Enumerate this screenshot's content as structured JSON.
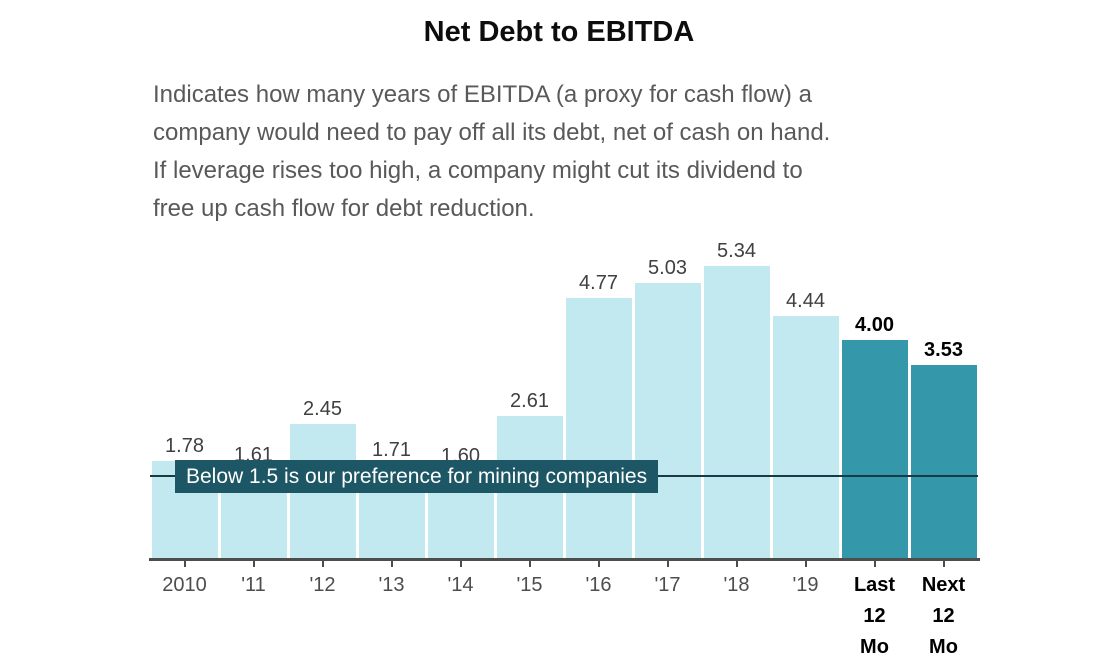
{
  "title": "Net Debt to EBITDA",
  "description": {
    "lines": [
      "Indicates how many years of EBITDA (a proxy for cash flow) a",
      "company would need to pay off all its debt, net of cash on hand.",
      "If leverage rises too high, a company might cut its dividend to",
      "free up cash flow for debt reduction."
    ]
  },
  "chart_data": {
    "type": "bar",
    "title": "Net Debt to EBITDA",
    "categories": [
      "2010",
      "'11",
      "'12",
      "'13",
      "'14",
      "'15",
      "'16",
      "'17",
      "'18",
      "'19",
      "Last 12 Mo",
      "Next 12 Mo"
    ],
    "values": [
      1.78,
      1.61,
      2.45,
      1.71,
      1.6,
      2.61,
      4.77,
      5.03,
      5.34,
      4.44,
      4.0,
      3.53
    ],
    "value_label_format": "2-decimals",
    "highlight_indices": [
      10,
      11
    ],
    "reference_line": {
      "value": 1.5,
      "label": "Below 1.5 is our preference for mining companies"
    },
    "ylim": [
      0,
      5.8
    ],
    "grid": false,
    "legend": "none",
    "colors": {
      "bar": "#c2e8f0",
      "highlight_bar": "#3597aa",
      "annotation_bg": "#1d5765",
      "annotation_text": "#ffffff",
      "reference_line": "#173a45",
      "axis": "#4d4d4d"
    }
  }
}
